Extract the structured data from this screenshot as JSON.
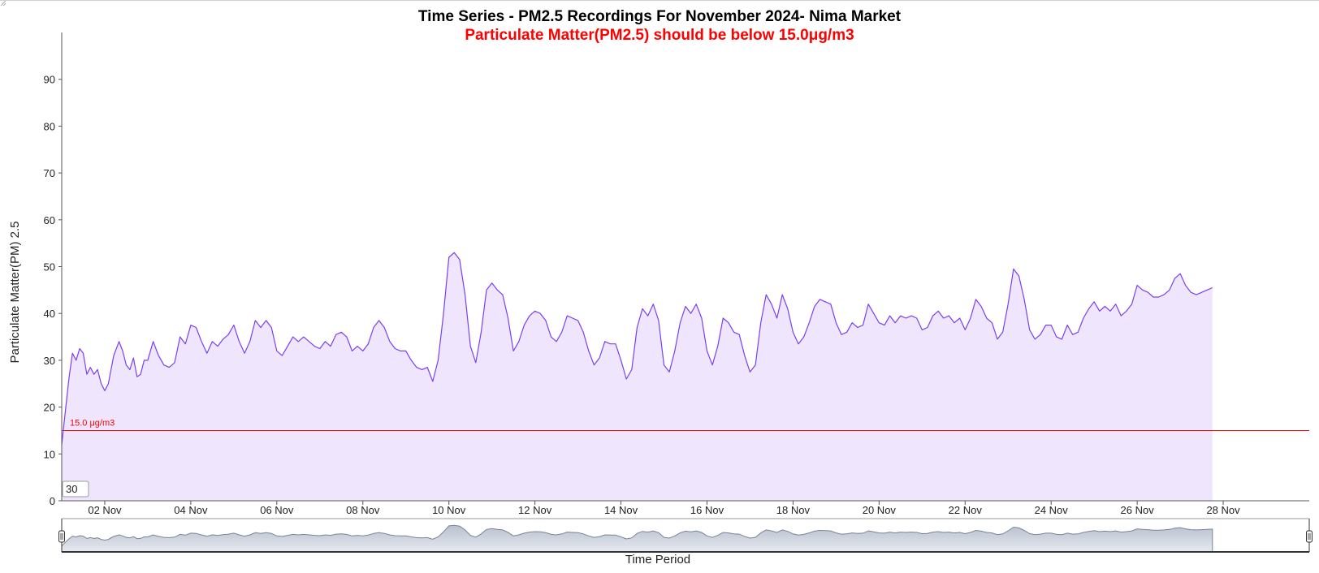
{
  "chart_data": {
    "type": "area",
    "title": "Time Series - PM2.5 Recordings For November 2024- Nima Market",
    "subtitle": "Particulate Matter(PM2.5) should be below 15.0μg/m3",
    "xlabel": "Time Period",
    "ylabel": "Particulate Matter(PM) 2.5",
    "ylim": [
      0,
      100
    ],
    "y_ticks": [
      0,
      10,
      20,
      30,
      40,
      50,
      60,
      70,
      80,
      90
    ],
    "x_range": [
      "2024-11-01T00:00",
      "2024-11-30T00:00"
    ],
    "x_ticks": [
      "02 Nov",
      "04 Nov",
      "06 Nov",
      "08 Nov",
      "10 Nov",
      "12 Nov",
      "14 Nov",
      "16 Nov",
      "18 Nov",
      "20 Nov",
      "22 Nov",
      "24 Nov",
      "26 Nov",
      "28 Nov"
    ],
    "threshold": {
      "value": 15.0,
      "label": "15.0 μg/m3",
      "color": "#ff0000"
    },
    "series": [
      {
        "color": "#7b3ff2",
        "fill": "#efe6fe",
        "points": [
          [
            "2024-11-01T00:00",
            12
          ],
          [
            "2024-11-01T02:00",
            19
          ],
          [
            "2024-11-01T04:00",
            26
          ],
          [
            "2024-11-01T06:00",
            31.5
          ],
          [
            "2024-11-01T08:00",
            30
          ],
          [
            "2024-11-01T10:00",
            32.5
          ],
          [
            "2024-11-01T12:00",
            31.5
          ],
          [
            "2024-11-01T14:00",
            27
          ],
          [
            "2024-11-01T16:00",
            28.5
          ],
          [
            "2024-11-01T18:00",
            27
          ],
          [
            "2024-11-01T20:00",
            28
          ],
          [
            "2024-11-01T22:00",
            25
          ],
          [
            "2024-11-02T00:00",
            23.5
          ],
          [
            "2024-11-02T02:00",
            25
          ],
          [
            "2024-11-02T05:00",
            31
          ],
          [
            "2024-11-02T08:00",
            34
          ],
          [
            "2024-11-02T10:00",
            32
          ],
          [
            "2024-11-02T12:00",
            29
          ],
          [
            "2024-11-02T14:00",
            28
          ],
          [
            "2024-11-02T16:00",
            30.5
          ],
          [
            "2024-11-02T18:00",
            26.5
          ],
          [
            "2024-11-02T20:00",
            27
          ],
          [
            "2024-11-02T22:00",
            30
          ],
          [
            "2024-11-03T00:00",
            30
          ],
          [
            "2024-11-03T03:00",
            34
          ],
          [
            "2024-11-03T06:00",
            31
          ],
          [
            "2024-11-03T09:00",
            29
          ],
          [
            "2024-11-03T12:00",
            28.5
          ],
          [
            "2024-11-03T15:00",
            29.5
          ],
          [
            "2024-11-03T18:00",
            35
          ],
          [
            "2024-11-03T21:00",
            33.5
          ],
          [
            "2024-11-04T00:00",
            37.5
          ],
          [
            "2024-11-04T03:00",
            37
          ],
          [
            "2024-11-04T06:00",
            34
          ],
          [
            "2024-11-04T09:00",
            31.5
          ],
          [
            "2024-11-04T12:00",
            34
          ],
          [
            "2024-11-04T15:00",
            33
          ],
          [
            "2024-11-04T18:00",
            34.5
          ],
          [
            "2024-11-04T21:00",
            35.5
          ],
          [
            "2024-11-05T00:00",
            37.5
          ],
          [
            "2024-11-05T03:00",
            34
          ],
          [
            "2024-11-05T06:00",
            31.5
          ],
          [
            "2024-11-05T09:00",
            34
          ],
          [
            "2024-11-05T12:00",
            38.5
          ],
          [
            "2024-11-05T15:00",
            37
          ],
          [
            "2024-11-05T18:00",
            38.5
          ],
          [
            "2024-11-05T21:00",
            37
          ],
          [
            "2024-11-06T00:00",
            32
          ],
          [
            "2024-11-06T03:00",
            31
          ],
          [
            "2024-11-06T06:00",
            33
          ],
          [
            "2024-11-06T09:00",
            35
          ],
          [
            "2024-11-06T12:00",
            34
          ],
          [
            "2024-11-06T15:00",
            35
          ],
          [
            "2024-11-06T18:00",
            34
          ],
          [
            "2024-11-06T21:00",
            33
          ],
          [
            "2024-11-07T00:00",
            32.5
          ],
          [
            "2024-11-07T03:00",
            34
          ],
          [
            "2024-11-07T06:00",
            33
          ],
          [
            "2024-11-07T09:00",
            35.5
          ],
          [
            "2024-11-07T12:00",
            36
          ],
          [
            "2024-11-07T15:00",
            35
          ],
          [
            "2024-11-07T18:00",
            32
          ],
          [
            "2024-11-07T21:00",
            33
          ],
          [
            "2024-11-08T00:00",
            32
          ],
          [
            "2024-11-08T03:00",
            33.5
          ],
          [
            "2024-11-08T06:00",
            37
          ],
          [
            "2024-11-08T09:00",
            38.5
          ],
          [
            "2024-11-08T12:00",
            37
          ],
          [
            "2024-11-08T15:00",
            34
          ],
          [
            "2024-11-08T18:00",
            32.5
          ],
          [
            "2024-11-08T21:00",
            32
          ],
          [
            "2024-11-09T00:00",
            32
          ],
          [
            "2024-11-09T03:00",
            30
          ],
          [
            "2024-11-09T06:00",
            28.5
          ],
          [
            "2024-11-09T09:00",
            28
          ],
          [
            "2024-11-09T12:00",
            28.5
          ],
          [
            "2024-11-09T15:00",
            25.5
          ],
          [
            "2024-11-09T18:00",
            30
          ],
          [
            "2024-11-09T21:00",
            40
          ],
          [
            "2024-11-10T00:00",
            52
          ],
          [
            "2024-11-10T03:00",
            53
          ],
          [
            "2024-11-10T06:00",
            51.5
          ],
          [
            "2024-11-10T09:00",
            44
          ],
          [
            "2024-11-10T12:00",
            33
          ],
          [
            "2024-11-10T15:00",
            29.5
          ],
          [
            "2024-11-10T18:00",
            36
          ],
          [
            "2024-11-10T21:00",
            45
          ],
          [
            "2024-11-11T00:00",
            46.5
          ],
          [
            "2024-11-11T03:00",
            45
          ],
          [
            "2024-11-11T06:00",
            44
          ],
          [
            "2024-11-11T09:00",
            39
          ],
          [
            "2024-11-11T12:00",
            32
          ],
          [
            "2024-11-11T15:00",
            34
          ],
          [
            "2024-11-11T18:00",
            37.5
          ],
          [
            "2024-11-11T21:00",
            39.5
          ],
          [
            "2024-11-12T00:00",
            40.5
          ],
          [
            "2024-11-12T03:00",
            40
          ],
          [
            "2024-11-12T06:00",
            38.5
          ],
          [
            "2024-11-12T09:00",
            35
          ],
          [
            "2024-11-12T12:00",
            34
          ],
          [
            "2024-11-12T15:00",
            36
          ],
          [
            "2024-11-12T18:00",
            39.5
          ],
          [
            "2024-11-12T21:00",
            39
          ],
          [
            "2024-11-13T00:00",
            38.5
          ],
          [
            "2024-11-13T03:00",
            36
          ],
          [
            "2024-11-13T06:00",
            32
          ],
          [
            "2024-11-13T09:00",
            29
          ],
          [
            "2024-11-13T12:00",
            30.5
          ],
          [
            "2024-11-13T15:00",
            34
          ],
          [
            "2024-11-13T18:00",
            33.5
          ],
          [
            "2024-11-13T21:00",
            33.5
          ],
          [
            "2024-11-14T00:00",
            30
          ],
          [
            "2024-11-14T03:00",
            26
          ],
          [
            "2024-11-14T06:00",
            28
          ],
          [
            "2024-11-14T09:00",
            37
          ],
          [
            "2024-11-14T12:00",
            41
          ],
          [
            "2024-11-14T15:00",
            39.5
          ],
          [
            "2024-11-14T18:00",
            42
          ],
          [
            "2024-11-14T21:00",
            38.5
          ],
          [
            "2024-11-15T00:00",
            29
          ],
          [
            "2024-11-15T03:00",
            27.5
          ],
          [
            "2024-11-15T06:00",
            32
          ],
          [
            "2024-11-15T09:00",
            38
          ],
          [
            "2024-11-15T12:00",
            41.5
          ],
          [
            "2024-11-15T15:00",
            40
          ],
          [
            "2024-11-15T18:00",
            42
          ],
          [
            "2024-11-15T21:00",
            39
          ],
          [
            "2024-11-16T00:00",
            32
          ],
          [
            "2024-11-16T03:00",
            29
          ],
          [
            "2024-11-16T06:00",
            33
          ],
          [
            "2024-11-16T09:00",
            39
          ],
          [
            "2024-11-16T12:00",
            38
          ],
          [
            "2024-11-16T15:00",
            36
          ],
          [
            "2024-11-16T18:00",
            35.5
          ],
          [
            "2024-11-16T21:00",
            31
          ],
          [
            "2024-11-17T00:00",
            27.5
          ],
          [
            "2024-11-17T03:00",
            29
          ],
          [
            "2024-11-17T06:00",
            38
          ],
          [
            "2024-11-17T09:00",
            44
          ],
          [
            "2024-11-17T12:00",
            42
          ],
          [
            "2024-11-17T15:00",
            39
          ],
          [
            "2024-11-17T18:00",
            44
          ],
          [
            "2024-11-17T21:00",
            41
          ],
          [
            "2024-11-18T00:00",
            36
          ],
          [
            "2024-11-18T03:00",
            33.5
          ],
          [
            "2024-11-18T06:00",
            35
          ],
          [
            "2024-11-18T09:00",
            38
          ],
          [
            "2024-11-18T12:00",
            41.5
          ],
          [
            "2024-11-18T15:00",
            43
          ],
          [
            "2024-11-18T18:00",
            42.5
          ],
          [
            "2024-11-18T21:00",
            42
          ],
          [
            "2024-11-19T00:00",
            38
          ],
          [
            "2024-11-19T03:00",
            35.5
          ],
          [
            "2024-11-19T06:00",
            36
          ],
          [
            "2024-11-19T09:00",
            38
          ],
          [
            "2024-11-19T12:00",
            37
          ],
          [
            "2024-11-19T15:00",
            37.5
          ],
          [
            "2024-11-19T18:00",
            42
          ],
          [
            "2024-11-19T21:00",
            40
          ],
          [
            "2024-11-20T00:00",
            38
          ],
          [
            "2024-11-20T03:00",
            37.5
          ],
          [
            "2024-11-20T06:00",
            39.5
          ],
          [
            "2024-11-20T09:00",
            38
          ],
          [
            "2024-11-20T12:00",
            39.5
          ],
          [
            "2024-11-20T15:00",
            39
          ],
          [
            "2024-11-20T18:00",
            39.5
          ],
          [
            "2024-11-20T21:00",
            39
          ],
          [
            "2024-11-21T00:00",
            36.5
          ],
          [
            "2024-11-21T03:00",
            37
          ],
          [
            "2024-11-21T06:00",
            39.5
          ],
          [
            "2024-11-21T09:00",
            40.5
          ],
          [
            "2024-11-21T12:00",
            39
          ],
          [
            "2024-11-21T15:00",
            39.5
          ],
          [
            "2024-11-21T18:00",
            38
          ],
          [
            "2024-11-21T21:00",
            39
          ],
          [
            "2024-11-22T00:00",
            36.5
          ],
          [
            "2024-11-22T03:00",
            39
          ],
          [
            "2024-11-22T06:00",
            43
          ],
          [
            "2024-11-22T09:00",
            41.5
          ],
          [
            "2024-11-22T12:00",
            39
          ],
          [
            "2024-11-22T15:00",
            38
          ],
          [
            "2024-11-22T18:00",
            34.5
          ],
          [
            "2024-11-22T21:00",
            36
          ],
          [
            "2024-11-23T00:00",
            42
          ],
          [
            "2024-11-23T03:00",
            49.5
          ],
          [
            "2024-11-23T06:00",
            48
          ],
          [
            "2024-11-23T09:00",
            43
          ],
          [
            "2024-11-23T12:00",
            36.5
          ],
          [
            "2024-11-23T15:00",
            34.5
          ],
          [
            "2024-11-23T18:00",
            35.5
          ],
          [
            "2024-11-23T21:00",
            37.5
          ],
          [
            "2024-11-24T00:00",
            37.5
          ],
          [
            "2024-11-24T03:00",
            35
          ],
          [
            "2024-11-24T06:00",
            34.5
          ],
          [
            "2024-11-24T09:00",
            37.5
          ],
          [
            "2024-11-24T12:00",
            35.5
          ],
          [
            "2024-11-24T15:00",
            36
          ],
          [
            "2024-11-24T18:00",
            39
          ],
          [
            "2024-11-24T21:00",
            41
          ],
          [
            "2024-11-25T00:00",
            42.5
          ],
          [
            "2024-11-25T03:00",
            40.5
          ],
          [
            "2024-11-25T06:00",
            41.5
          ],
          [
            "2024-11-25T09:00",
            40.5
          ],
          [
            "2024-11-25T12:00",
            42
          ],
          [
            "2024-11-25T15:00",
            39.5
          ],
          [
            "2024-11-25T18:00",
            40.5
          ],
          [
            "2024-11-25T21:00",
            42
          ],
          [
            "2024-11-26T00:00",
            46
          ],
          [
            "2024-11-26T03:00",
            45
          ],
          [
            "2024-11-26T06:00",
            44.5
          ],
          [
            "2024-11-26T09:00",
            43.5
          ],
          [
            "2024-11-26T12:00",
            43.5
          ],
          [
            "2024-11-26T15:00",
            44
          ],
          [
            "2024-11-26T18:00",
            45
          ],
          [
            "2024-11-26T21:00",
            47.5
          ],
          [
            "2024-11-27T00:00",
            48.5
          ],
          [
            "2024-11-27T03:00",
            46
          ],
          [
            "2024-11-27T06:00",
            44.5
          ],
          [
            "2024-11-27T09:00",
            44
          ],
          [
            "2024-11-27T12:00",
            44.5
          ],
          [
            "2024-11-27T15:00",
            45
          ],
          [
            "2024-11-27T18:00",
            45.5
          ]
        ]
      }
    ]
  },
  "ui": {
    "window_input_value": "30"
  }
}
